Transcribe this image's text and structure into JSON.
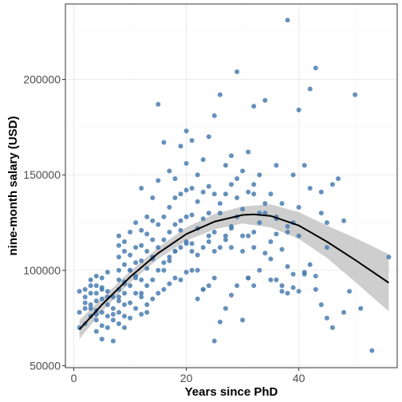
{
  "chart_data": {
    "type": "scatter",
    "title": "",
    "xlabel": "Years since PhD",
    "ylabel": "nine-month salary (USD)",
    "xlim": [
      -1.5,
      57.5
    ],
    "ylim": [
      49000,
      239500
    ],
    "x_ticks": [
      0,
      20,
      40
    ],
    "x_tick_labels": [
      "0",
      "20",
      "40"
    ],
    "y_ticks": [
      50000,
      100000,
      150000,
      200000
    ],
    "y_tick_labels": [
      "50000",
      "100000",
      "150000",
      "200000"
    ],
    "grid": true,
    "legend": "none",
    "colors": {
      "points": "#4a7cb0",
      "fit_line": "#000000",
      "ribbon": "#bdbdbd",
      "grid_major": "#ebebeb",
      "grid_minor": "#f5f5f5",
      "panel_border": "#333333"
    },
    "series": [
      {
        "kind": "points",
        "x": [
          1,
          1,
          1,
          2,
          2,
          2,
          2,
          3,
          3,
          3,
          3,
          3,
          4,
          4,
          4,
          4,
          4,
          4,
          4,
          5,
          5,
          5,
          5,
          5,
          5,
          6,
          6,
          6,
          6,
          6,
          7,
          7,
          7,
          7,
          8,
          8,
          8,
          8,
          8,
          8,
          8,
          8,
          8,
          9,
          9,
          9,
          9,
          9,
          9,
          9,
          9,
          10,
          10,
          10,
          10,
          10,
          10,
          11,
          11,
          11,
          11,
          11,
          11,
          12,
          12,
          12,
          12,
          12,
          12,
          12,
          13,
          13,
          13,
          13,
          13,
          13,
          14,
          14,
          14,
          14,
          14,
          14,
          15,
          15,
          15,
          15,
          15,
          16,
          16,
          16,
          16,
          16,
          17,
          17,
          17,
          17,
          17,
          18,
          18,
          18,
          18,
          18,
          19,
          19,
          19,
          19,
          19,
          20,
          20,
          20,
          20,
          20,
          20,
          21,
          21,
          21,
          21,
          21,
          22,
          22,
          22,
          22,
          22,
          23,
          23,
          23,
          23,
          23,
          24,
          24,
          24,
          24,
          24,
          25,
          25,
          25,
          25,
          26,
          26,
          26,
          26,
          27,
          27,
          27,
          27,
          28,
          28,
          28,
          28,
          29,
          29,
          29,
          29,
          30,
          30,
          30,
          30,
          31,
          31,
          31,
          31,
          32,
          32,
          32,
          32,
          33,
          33,
          33,
          34,
          34,
          34,
          35,
          35,
          35,
          36,
          36,
          36,
          37,
          37,
          37,
          38,
          38,
          38,
          39,
          39,
          39,
          40,
          40,
          40,
          41,
          41,
          42,
          42,
          43,
          43,
          44,
          44,
          45,
          45,
          46,
          46,
          47,
          48,
          49,
          50,
          51,
          53,
          56,
          13,
          15,
          17,
          19,
          21,
          23,
          25,
          27,
          29,
          31,
          33,
          35,
          37,
          39,
          41,
          43,
          45,
          18,
          22,
          26,
          30,
          34,
          38,
          28,
          25,
          32,
          36,
          38,
          42,
          48,
          14,
          16,
          20,
          24,
          28,
          32,
          36,
          40,
          44,
          12,
          10,
          8,
          11,
          9,
          6,
          7,
          5,
          3,
          2,
          4
        ],
        "y": [
          70000,
          78000,
          89000,
          72000,
          80000,
          86000,
          90000,
          76000,
          82000,
          88000,
          92000,
          95000,
          68000,
          74000,
          79000,
          84000,
          88000,
          92000,
          97000,
          64000,
          71000,
          78000,
          85000,
          91000,
          96000,
          70000,
          76000,
          82000,
          89000,
          99000,
          63000,
          74000,
          80000,
          86000,
          72000,
          78000,
          84000,
          90000,
          95000,
          100000,
          107000,
          113000,
          118000,
          70000,
          76000,
          82000,
          88000,
          94000,
          103000,
          110000,
          115000,
          75000,
          83000,
          92000,
          100000,
          108000,
          120000,
          80000,
          88000,
          96000,
          104000,
          112000,
          125000,
          77000,
          86000,
          95000,
          105000,
          113000,
          121000,
          143000,
          82000,
          92000,
          101000,
          110000,
          119000,
          128000,
          85000,
          95000,
          106000,
          116000,
          126000,
          138000,
          88000,
          100000,
          112000,
          124000,
          147000,
          90000,
          104000,
          116000,
          128000,
          167000,
          93000,
          107000,
          120000,
          133000,
          152000,
          96000,
          110000,
          124000,
          138000,
          148000,
          95000,
          112000,
          126000,
          140000,
          165000,
          99000,
          115000,
          128000,
          142000,
          156000,
          173000,
          100000,
          114000,
          129000,
          143000,
          168000,
          85000,
          108000,
          122000,
          136000,
          150000,
          90000,
          112000,
          127000,
          141000,
          158000,
          92000,
          115000,
          130000,
          144000,
          170000,
          63000,
          96000,
          120000,
          181000,
          73000,
          112000,
          135000,
          192000,
          80000,
          118000,
          140000,
          155000,
          87000,
          123000,
          145000,
          160000,
          92000,
          128000,
          204000,
          148000,
          74000,
          110000,
          132000,
          152000,
          96000,
          118000,
          141000,
          162000,
          92000,
          120000,
          145000,
          186000,
          100000,
          125000,
          150000,
          109000,
          130000,
          189000,
          95000,
          115000,
          140000,
          95000,
          127000,
          155000,
          89000,
          111000,
          135000,
          231000,
          88000,
          120000,
          150000,
          91000,
          125000,
          184000,
          89000,
          118000,
          155000,
          99000,
          195000,
          103000,
          206000,
          97000,
          130000,
          82000,
          112000,
          75000,
          145000,
          70000,
          148000,
          78000,
          89000,
          192000,
          80000,
          58000,
          107000,
          78000,
          187000,
          105000,
          121000,
          110000,
          90000,
          140000,
          116000,
          138000,
          96000,
          130000,
          106000,
          92000,
          98000,
          98000,
          90000,
          125000,
          110000,
          100000,
          130000,
          118000,
          135000,
          123000,
          112000,
          110000,
          140000,
          128000,
          102000,
          143000,
          126000,
          107000,
          100000,
          114000,
          118000,
          122000,
          112000,
          119000,
          133000,
          141000,
          88000,
          100000,
          86000,
          97000,
          93000,
          86000,
          77000,
          90000,
          80000,
          83000,
          77000
        ]
      },
      {
        "kind": "quadratic_fit",
        "x": [
          1,
          5,
          10,
          15,
          20,
          25,
          30,
          32,
          35,
          40,
          45,
          50,
          56
        ],
        "y": [
          69000,
          82000,
          96500,
          109000,
          119000,
          125500,
          129000,
          129300,
          128500,
          123500,
          115000,
          105500,
          93500
        ]
      },
      {
        "kind": "confidence_band",
        "x": [
          1,
          5,
          10,
          15,
          20,
          25,
          30,
          35,
          40,
          45,
          50,
          56
        ],
        "lower": [
          64000,
          78500,
          93500,
          106000,
          115500,
          121500,
          124500,
          122500,
          116500,
          106500,
          94000,
          78500
        ],
        "upper": [
          74000,
          85500,
          99500,
          112000,
          122500,
          129500,
          133500,
          134500,
          130500,
          123500,
          117000,
          108500
        ]
      }
    ]
  }
}
